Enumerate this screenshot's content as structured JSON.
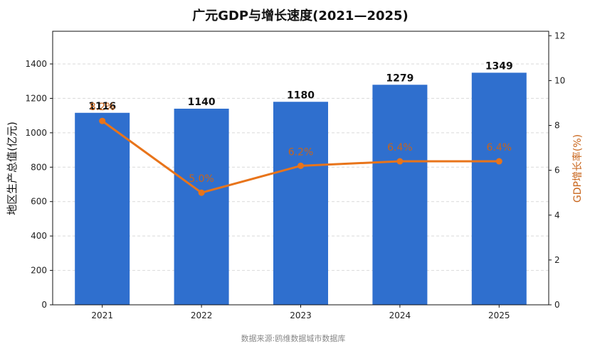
{
  "chart_data": {
    "type": "bar",
    "title": "广元GDP与增长速度(2021—2025)",
    "source": "数据来源:鸥维数据城市数据库",
    "categories": [
      "2021",
      "2022",
      "2023",
      "2024",
      "2025"
    ],
    "ylabel": "地区生产总值(亿元)",
    "y2label": "GDP增长率(%)",
    "ylim": [
      0,
      1590
    ],
    "y2lim": [
      0,
      12.2
    ],
    "yticks": [
      0,
      200,
      400,
      600,
      800,
      1000,
      1200,
      1400
    ],
    "y2ticks": [
      0,
      2,
      4,
      6,
      8,
      10,
      12
    ],
    "grid": true,
    "series": [
      {
        "kind": "bar",
        "values": [
          1116,
          1140,
          1180,
          1279,
          1349
        ],
        "color": "#2f6fce"
      },
      {
        "kind": "line",
        "axis": "right",
        "values": [
          8.2,
          5.0,
          6.2,
          6.4,
          6.4
        ],
        "labels": [
          "8.2%",
          "5.0%",
          "6.2%",
          "6.4%",
          "6.4%"
        ],
        "color": "#e8741a"
      }
    ]
  }
}
